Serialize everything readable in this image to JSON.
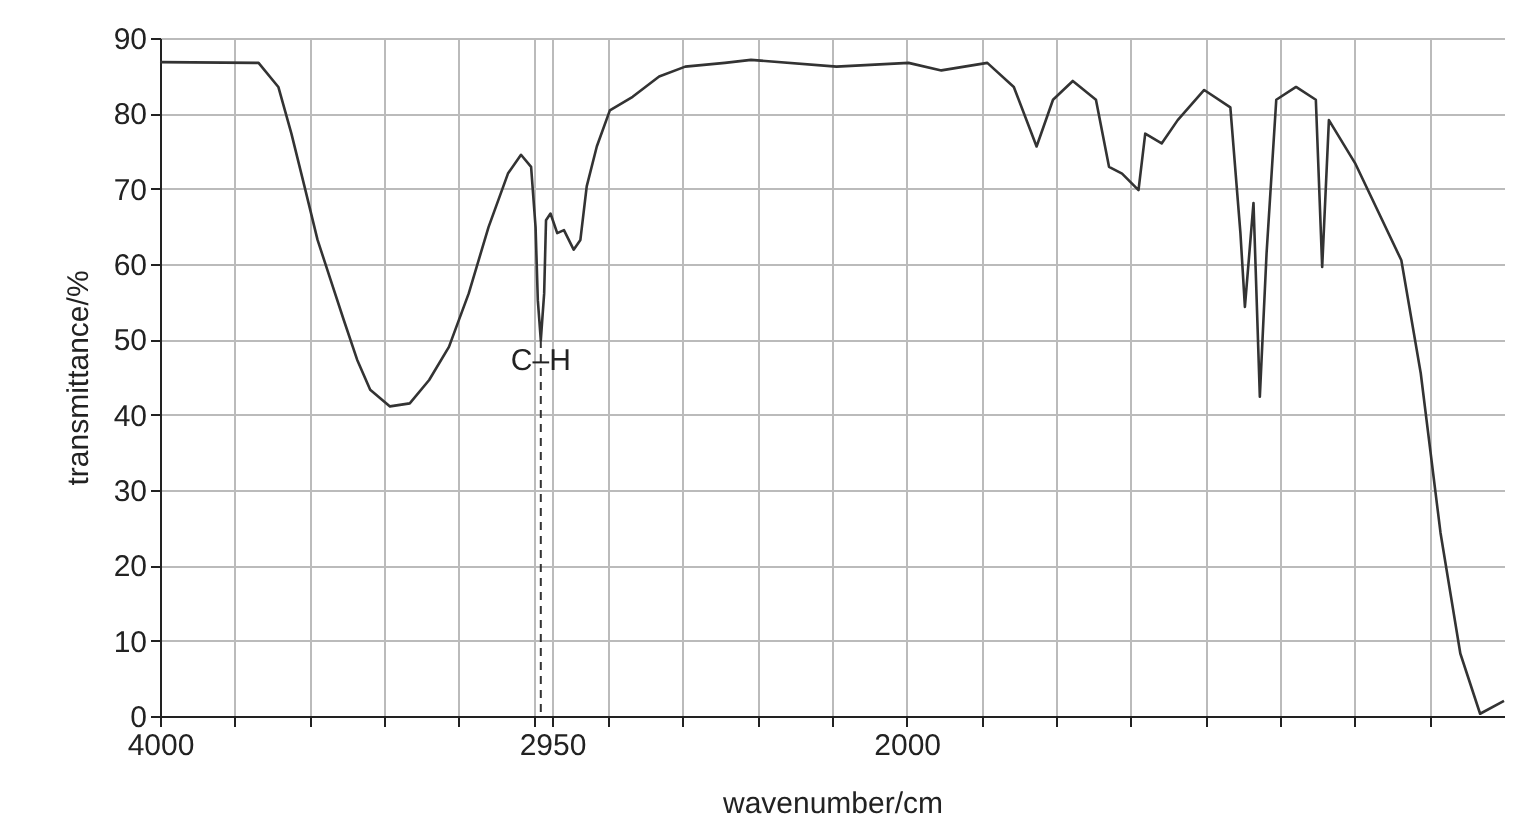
{
  "chart_data": {
    "type": "line",
    "xlabel": "wavenumber/cm",
    "ylabel": "transmittance/%",
    "x": [
      4000,
      3736,
      3683,
      3648,
      3613,
      3578,
      3543,
      3508,
      3472,
      3437,
      3384,
      3331,
      3279,
      3226,
      3173,
      3120,
      3068,
      3033,
      3006,
      2994,
      2988,
      2980,
      2971,
      2966,
      2954,
      2936,
      2918,
      2892,
      2874,
      2857,
      2830,
      2795,
      2734,
      2663,
      2593,
      2487,
      2417,
      2188,
      1995,
      1907,
      1784,
      1713,
      1652,
      1608,
      1555,
      1493,
      1458,
      1423,
      1379,
      1361,
      1317,
      1274,
      1203,
      1133,
      1106,
      1094,
      1071,
      1054,
      1036,
      1010,
      957,
      904,
      887,
      869,
      799,
      675,
      623,
      570,
      517,
      464,
      400
    ],
    "series": [
      {
        "color": "#333333",
        "values": [
          86.8,
          86.7,
          83.5,
          77.3,
          70.3,
          63.2,
          57.9,
          52.6,
          47.3,
          43.3,
          41.1,
          41.5,
          44.6,
          49.0,
          56.1,
          64.9,
          72.0,
          74.5,
          72.9,
          64.9,
          55.2,
          49.9,
          56.1,
          65.8,
          66.7,
          64.1,
          64.5,
          61.9,
          63.2,
          70.3,
          75.6,
          80.4,
          82.2,
          84.9,
          86.2,
          86.7,
          87.1,
          86.2,
          86.7,
          85.7,
          86.7,
          83.5,
          75.6,
          81.8,
          84.3,
          81.8,
          72.9,
          72.0,
          69.8,
          77.3,
          76.0,
          79.1,
          83.1,
          80.8,
          64.1,
          54.3,
          68.1,
          42.4,
          61.4,
          81.8,
          83.5,
          81.8,
          59.6,
          79.1,
          73.4,
          60.5,
          45.5,
          24.3,
          8.3,
          0.3,
          2
        ]
      }
    ],
    "xlim": [
      4000,
      400
    ],
    "xticks": [
      4000,
      {
        "value": 3800,
        "label": null
      },
      {
        "value": 3600,
        "label": null
      },
      {
        "value": 3400,
        "label": null
      },
      {
        "value": 3200,
        "label": null
      },
      {
        "value": 3000,
        "label": null
      },
      2950,
      {
        "value": 2800,
        "label": null
      },
      {
        "value": 2600,
        "label": null
      },
      {
        "value": 2400,
        "label": null
      },
      {
        "value": 2200,
        "label": null
      },
      2000,
      {
        "value": 1800,
        "label": null
      },
      {
        "value": 1600,
        "label": null
      },
      {
        "value": 1400,
        "label": null
      },
      {
        "value": 1200,
        "label": null
      },
      {
        "value": 1000,
        "label": null
      },
      {
        "value": 800,
        "label": null
      },
      {
        "value": 600,
        "label": null
      }
    ],
    "ylim": [
      0,
      90
    ],
    "yticks": [
      0,
      10,
      20,
      30,
      40,
      50,
      60,
      70,
      80,
      90
    ],
    "grid": true,
    "annotations": [
      {
        "text": "C–H",
        "x": 2980,
        "y": 49.9
      }
    ]
  }
}
